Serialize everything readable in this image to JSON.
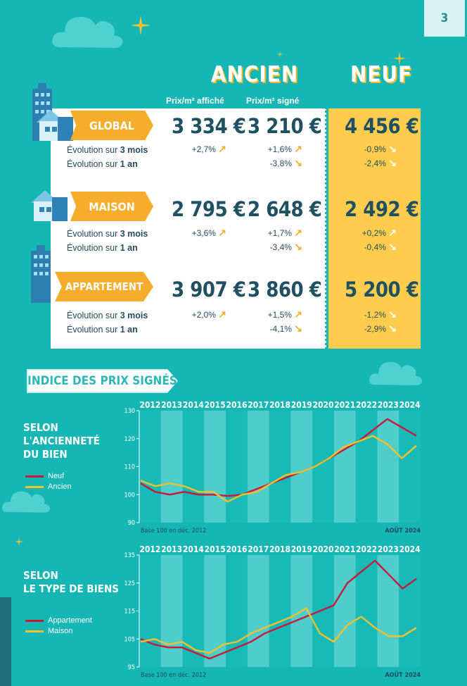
{
  "page_number": "3",
  "headers": {
    "ancien": "ANCIEN",
    "neuf": "NEUF",
    "col_affiche": "Prix/m² affiché",
    "col_signe": "Prix/m² signé"
  },
  "rows": [
    {
      "label": "GLOBAL",
      "affiche": "3 334 €",
      "signe": "3 210 €",
      "neuf": "4 456 €",
      "evo3": {
        "affiche": "+2,7%",
        "signe": "+1,6%",
        "neuf": "-0,9%"
      },
      "evo1": {
        "affiche": "",
        "signe": "-3,8%",
        "neuf": "-2,4%"
      }
    },
    {
      "label": "MAISON",
      "affiche": "2 795 €",
      "signe": "2 648 €",
      "neuf": "2 492 €",
      "evo3": {
        "affiche": "+3,6%",
        "signe": "+1,7%",
        "neuf": "+0,2%"
      },
      "evo1": {
        "affiche": "",
        "signe": "-3,4%",
        "neuf": "-0,4%"
      }
    },
    {
      "label": "APPARTEMENT",
      "affiche": "3 907 €",
      "signe": "3 860 €",
      "neuf": "5 200 €",
      "evo3": {
        "affiche": "+2,0%",
        "signe": "+1,5%",
        "neuf": "-1,2%"
      },
      "evo1": {
        "affiche": "",
        "signe": "-4,1%",
        "neuf": "-2,9%"
      }
    }
  ],
  "evo_labels": {
    "three_pre": "Évolution sur ",
    "three_bold": "3 mois",
    "one_pre": "Évolution sur ",
    "one_bold": "1 an"
  },
  "banner": "INDICE DES PRIX SIGNÉS",
  "colors": {
    "teal": "#15b6b3",
    "red": "#c8183c",
    "yellow": "#f2c12e",
    "orange": "#f6ad2b"
  },
  "chart_data": [
    {
      "type": "line",
      "title_lines": [
        "SELON",
        "L'ANCIENNETÉ",
        "DU BIEN"
      ],
      "x_labels": [
        "2012",
        "2013",
        "2014",
        "2015",
        "2016",
        "2017",
        "2018",
        "2019",
        "2020",
        "2021",
        "2022",
        "2023",
        "2024"
      ],
      "ylim": [
        90,
        130
      ],
      "yticks": [
        90,
        100,
        110,
        120,
        130
      ],
      "footnote": "Base 100 en déc. 2012",
      "date_label": "AOÛT 2024",
      "series": [
        {
          "name": "Neuf",
          "color": "#c8183c",
          "values": [
            104,
            101,
            100,
            101,
            100,
            100,
            99.5,
            100,
            102,
            104,
            106,
            108,
            110,
            113,
            116,
            119,
            123,
            127,
            124,
            121
          ]
        },
        {
          "name": "Ancien",
          "color": "#f2c12e",
          "values": [
            105,
            103,
            104,
            103,
            101,
            101,
            97.5,
            100,
            101,
            104,
            107,
            108,
            110,
            113,
            117,
            119,
            121,
            118,
            113,
            117.5
          ]
        }
      ]
    },
    {
      "type": "line",
      "title_lines": [
        "SELON",
        "LE TYPE DE BIENS"
      ],
      "x_labels": [
        "2012",
        "2013",
        "2014",
        "2015",
        "2016",
        "2017",
        "2018",
        "2019",
        "2020",
        "2021",
        "2022",
        "2023",
        "2024"
      ],
      "ylim": [
        95,
        135
      ],
      "yticks": [
        95,
        105,
        115,
        125,
        135
      ],
      "footnote": "Base 100 en déc. 2012",
      "date_label": "AOÛT 2024",
      "series": [
        {
          "name": "Appartement",
          "color": "#c8183c",
          "values": [
            105,
            103,
            102,
            102,
            100,
            98,
            100,
            102,
            104,
            107,
            109,
            111,
            113,
            115,
            117,
            125,
            129,
            133,
            128,
            123,
            126.5
          ]
        },
        {
          "name": "Maison",
          "color": "#f2c12e",
          "values": [
            104,
            105,
            103,
            104,
            101,
            100,
            103,
            104,
            107,
            109,
            111,
            113,
            116,
            107,
            104,
            110,
            113,
            109,
            106,
            106,
            109
          ]
        }
      ]
    }
  ]
}
